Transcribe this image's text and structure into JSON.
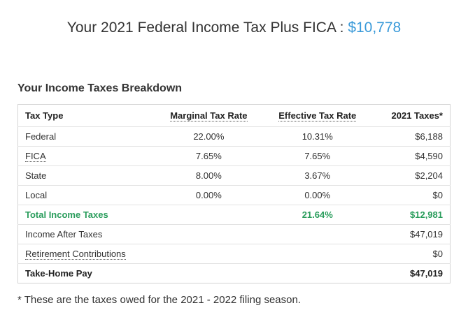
{
  "header": {
    "title": "Your 2021 Federal Income Tax Plus FICA :",
    "amount": "$10,778"
  },
  "section": {
    "title": "Your Income Taxes Breakdown"
  },
  "table": {
    "columns": [
      "Tax Type",
      "Marginal Tax Rate",
      "Effective Tax Rate",
      "2021 Taxes*"
    ],
    "rows": [
      [
        "Federal",
        "22.00%",
        "10.31%",
        "$6,188"
      ],
      [
        "FICA",
        "7.65%",
        "7.65%",
        "$4,590"
      ],
      [
        "State",
        "8.00%",
        "3.67%",
        "$2,204"
      ],
      [
        "Local",
        "0.00%",
        "0.00%",
        "$0"
      ],
      [
        "Total Income Taxes",
        null,
        "21.64%",
        "$12,981"
      ],
      [
        "Income After Taxes",
        null,
        null,
        "$47,019"
      ],
      [
        "Retirement Contributions",
        null,
        null,
        "$0"
      ],
      [
        "Take-Home Pay",
        null,
        null,
        "$47,019"
      ]
    ]
  },
  "footnote": "* These are the taxes owed for the 2021 - 2022 filing season."
}
